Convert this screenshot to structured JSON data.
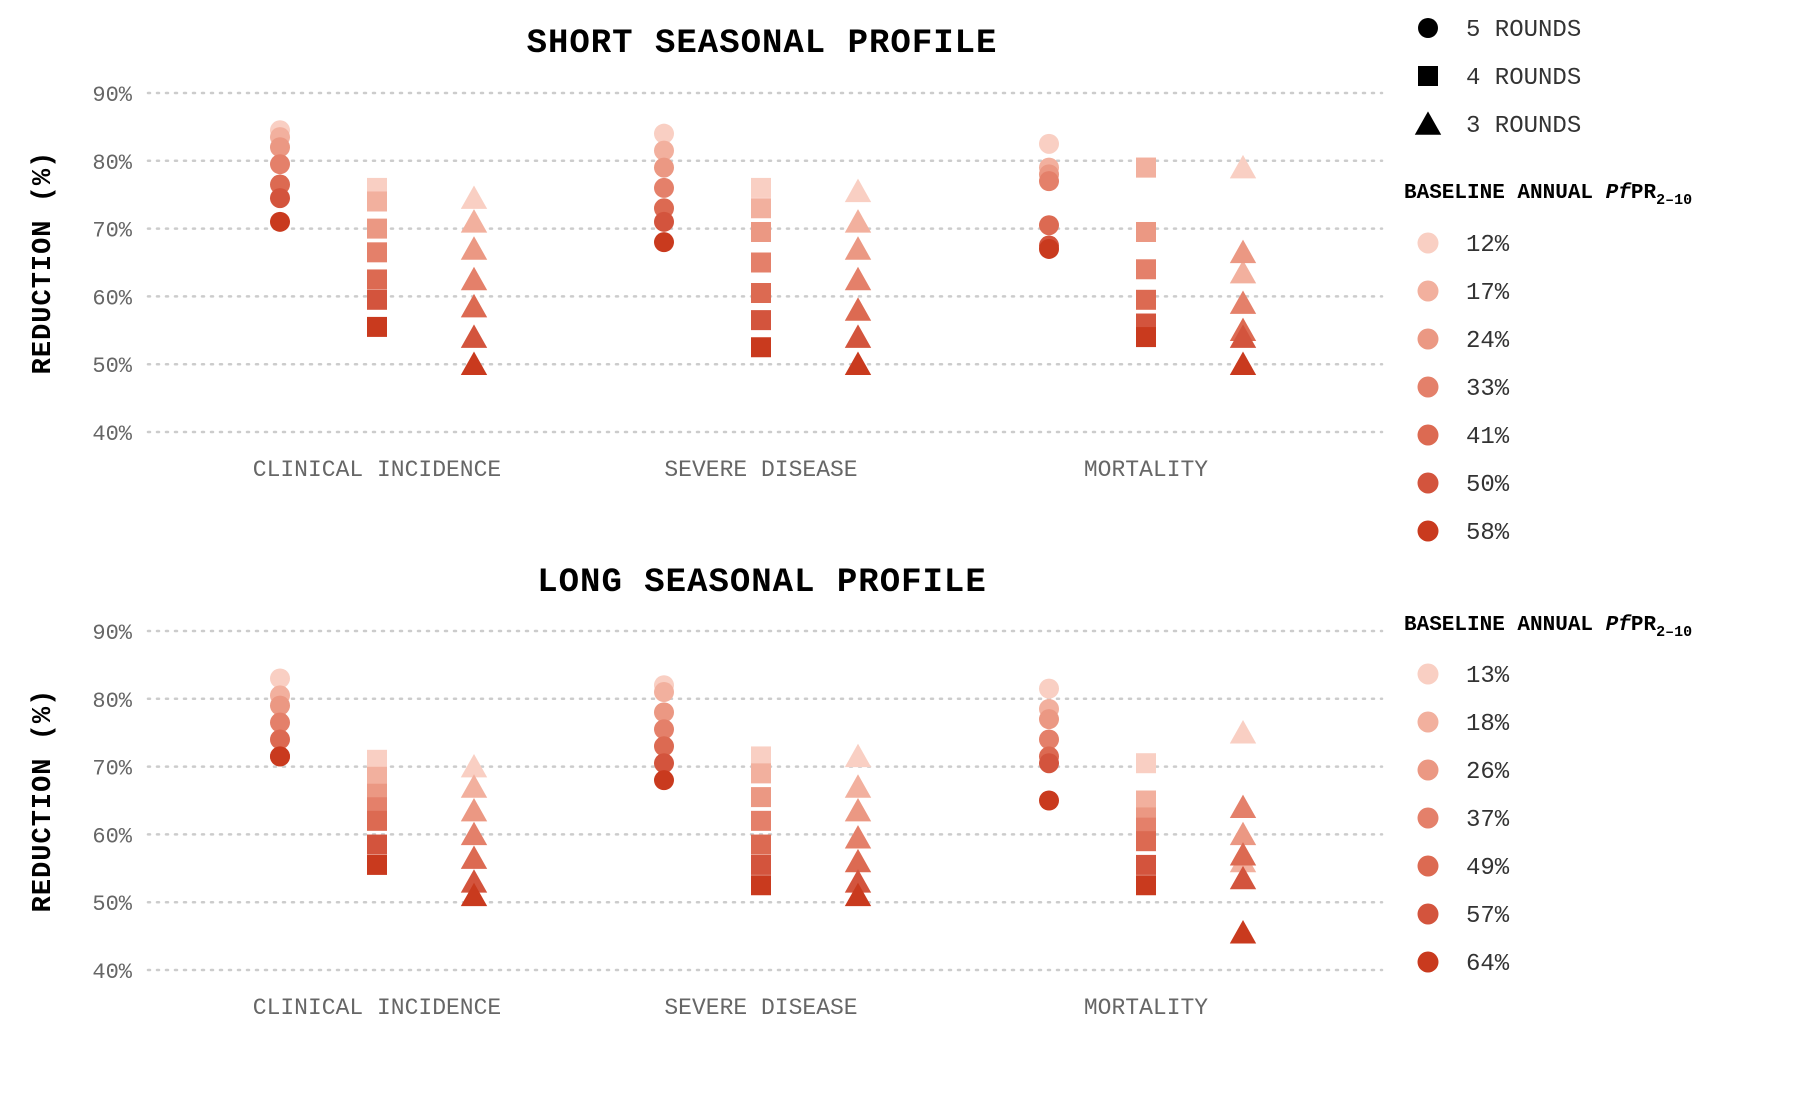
{
  "legend": {
    "shapes": [
      {
        "shape": "circle",
        "label": "5 ROUNDS"
      },
      {
        "shape": "square",
        "label": "4 ROUNDS"
      },
      {
        "shape": "triangle",
        "label": "3 ROUNDS"
      }
    ],
    "title_prefix": "BASELINE ANNUAL ",
    "title_italic": "Pf",
    "title_main": "PR",
    "title_sub": "2–10"
  },
  "colors": [
    "#f9cfc3",
    "#f2b09e",
    "#eb9883",
    "#e4806a",
    "#dc6a52",
    "#d3543d",
    "#c93a1e"
  ],
  "chart_data": [
    {
      "type": "scatter",
      "title": "SHORT SEASONAL PROFILE",
      "ylabel": "REDUCTION (%)",
      "ylim": [
        40,
        90
      ],
      "yticks": [
        {
          "v": 40,
          "label": "40%"
        },
        {
          "v": 50,
          "label": "50%"
        },
        {
          "v": 60,
          "label": "60%"
        },
        {
          "v": 70,
          "label": "70%"
        },
        {
          "v": 80,
          "label": "80%"
        },
        {
          "v": 90,
          "label": "90%"
        }
      ],
      "categories": [
        "CLINICAL INCIDENCE",
        "SEVERE DISEASE",
        "MORTALITY"
      ],
      "grid": true,
      "legend_levels": [
        "12%",
        "17%",
        "24%",
        "33%",
        "41%",
        "50%",
        "58%"
      ],
      "series": [
        {
          "name": "5 ROUNDS",
          "shape": "circle",
          "values": [
            [
              84.5,
              83.5,
              82,
              79.5,
              76.5,
              74.5,
              71
            ],
            [
              84,
              81.5,
              79,
              76,
              73,
              71,
              68
            ],
            [
              82.5,
              79,
              78,
              77,
              70.5,
              67.5,
              67
            ]
          ]
        },
        {
          "name": "4 ROUNDS",
          "shape": "square",
          "values": [
            [
              76,
              74,
              70,
              66.5,
              62.5,
              59.5,
              55.5
            ],
            [
              76,
              73,
              69.5,
              65,
              60.5,
              56.5,
              52.5
            ],
            [
              79,
              79,
              69.5,
              64,
              59.5,
              56,
              54
            ]
          ]
        },
        {
          "name": "3 ROUNDS",
          "shape": "triangle",
          "values": [
            [
              74.5,
              71,
              67,
              62.5,
              58.5,
              54,
              50
            ],
            [
              75.5,
              71,
              67,
              62.5,
              58,
              54,
              50
            ],
            [
              79,
              63.5,
              66.5,
              59,
              55,
              54,
              50
            ]
          ]
        }
      ]
    },
    {
      "type": "scatter",
      "title": "LONG SEASONAL PROFILE",
      "ylabel": "REDUCTION (%)",
      "ylim": [
        40,
        90
      ],
      "yticks": [
        {
          "v": 40,
          "label": "40%"
        },
        {
          "v": 50,
          "label": "50%"
        },
        {
          "v": 60,
          "label": "60%"
        },
        {
          "v": 70,
          "label": "70%"
        },
        {
          "v": 80,
          "label": "80%"
        },
        {
          "v": 90,
          "label": "90%"
        }
      ],
      "categories": [
        "CLINICAL INCIDENCE",
        "SEVERE DISEASE",
        "MORTALITY"
      ],
      "grid": true,
      "legend_levels": [
        "13%",
        "18%",
        "26%",
        "37%",
        "49%",
        "57%",
        "64%"
      ],
      "series": [
        {
          "name": "5 ROUNDS",
          "shape": "circle",
          "values": [
            [
              83,
              80.5,
              79,
              76.5,
              74,
              71.5,
              71.5
            ],
            [
              82,
              81,
              78,
              75.5,
              73,
              70.5,
              68
            ],
            [
              81.5,
              78.5,
              77,
              74,
              71.5,
              70.5,
              65
            ]
          ]
        },
        {
          "name": "4 ROUNDS",
          "shape": "square",
          "values": [
            [
              71,
              68.5,
              66,
              64,
              62,
              58.5,
              55.5
            ],
            [
              71.5,
              69,
              65.5,
              62,
              58.5,
              55.5,
              52.5
            ],
            [
              70.5,
              65,
              62.5,
              61,
              59,
              55.5,
              52.5
            ]
          ]
        },
        {
          "name": "3 ROUNDS",
          "shape": "triangle",
          "values": [
            [
              70,
              67,
              63.5,
              60,
              56.5,
              53,
              51
            ],
            [
              71.5,
              67,
              63.5,
              59.5,
              56,
              53,
              51
            ],
            [
              75,
              56,
              60,
              64,
              57,
              53.5,
              45.5
            ]
          ]
        }
      ]
    }
  ]
}
